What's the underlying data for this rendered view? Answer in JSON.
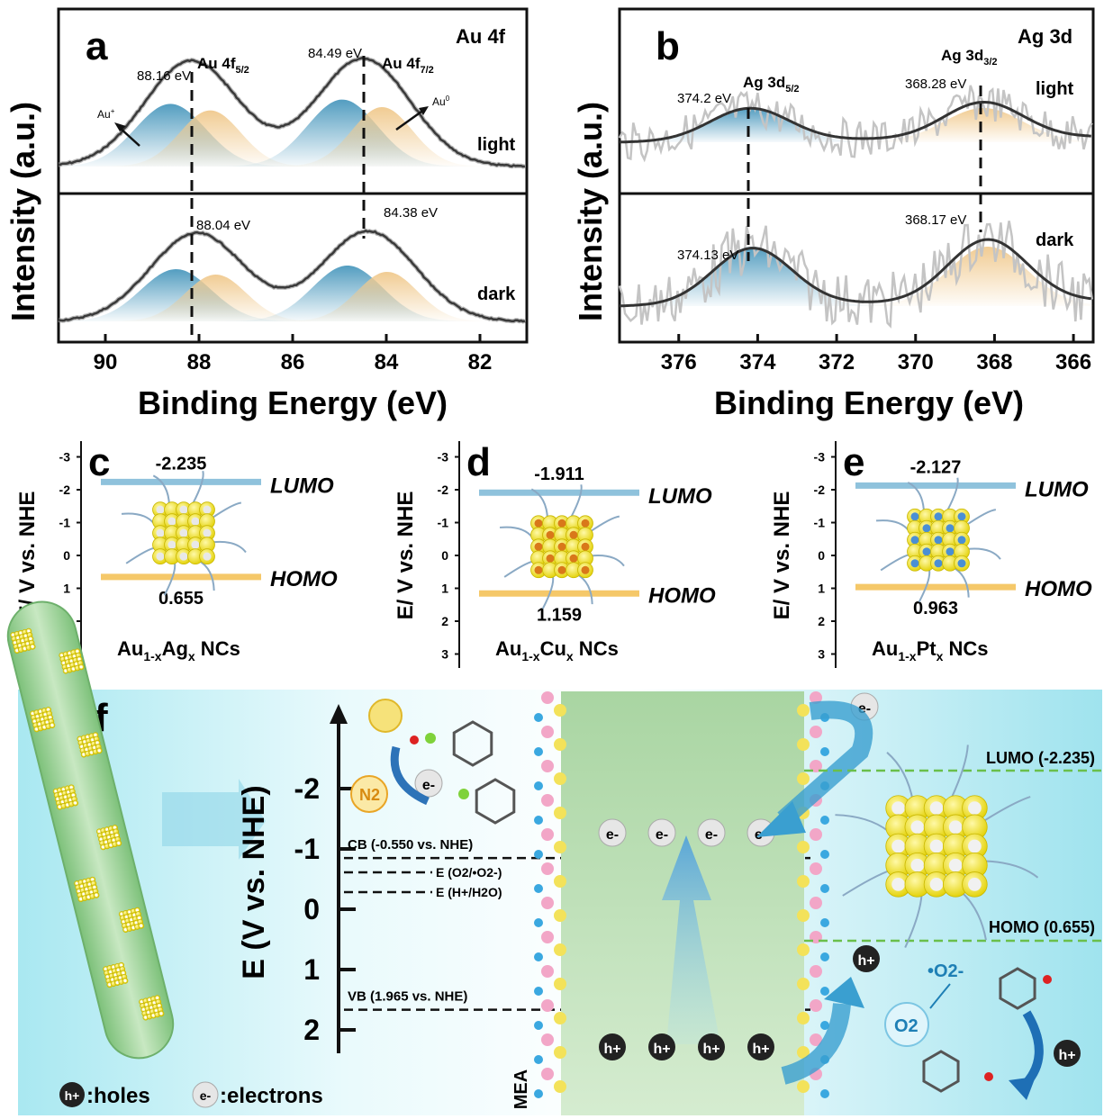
{
  "panels": {
    "a": {
      "letter": "a",
      "tag": "Au 4f",
      "upper_label": "light",
      "lower_label": "dark"
    },
    "b": {
      "letter": "b",
      "tag": "Ag 3d",
      "upper_label": "light",
      "lower_label": "dark"
    },
    "c": {
      "letter": "c",
      "material": "Au1-xAgx NCs"
    },
    "d": {
      "letter": "d",
      "material": "Au1-xCux NCs"
    },
    "e": {
      "letter": "e",
      "material": "Au1-xPtx NCs"
    },
    "f": {
      "letter": "f",
      "axis_label": "E (V vs. NHE)",
      "cb_label": "CB (-0.550 vs. NHE)",
      "vb_label": "VB (1.965 vs. NHE)",
      "o2_label": "E (O2/•O2-)",
      "h_label": "E (H+/H2O)",
      "lumo_label": "LUMO (-2.235)",
      "homo_label": "HOMO (0.655)",
      "mea_label": "MEA",
      "legend_holes": ":holes",
      "legend_electrons": ":electrons",
      "n2_label": "N2",
      "o2_bubble": "O2",
      "o2_radical": "•O2-",
      "electron_symbol": "e-",
      "hole_symbol": "h+",
      "colors": {
        "background": "#bfeff5",
        "rod": "#9fd19a",
        "cluster": "#f2e318",
        "arrow": "#3a9fd0"
      }
    }
  },
  "axis_labels": {
    "binding_energy": "Binding Energy (eV)",
    "intensity": "Intensity (a.u.)",
    "e_v_nhe": "E/ V vs. NHE",
    "lumo": "LUMO",
    "homo": "HOMO"
  },
  "chart_data": [
    {
      "panel": "a",
      "type": "line",
      "title": "",
      "xlabel": "Binding Energy (eV)",
      "ylabel": "Intensity (a.u.)",
      "xlim": [
        91,
        81
      ],
      "xticks": [
        90,
        88,
        86,
        84,
        82
      ],
      "reversed_x": true,
      "subplots": [
        {
          "label": "light",
          "peaks": [
            {
              "name": "Au 4f5/2",
              "position_eV": 88.16,
              "label": "88.16 eV"
            },
            {
              "name": "Au 4f7/2",
              "position_eV": 84.49,
              "label": "84.49 eV"
            }
          ],
          "components": [
            "Au+",
            "Au0"
          ]
        },
        {
          "label": "dark",
          "peaks": [
            {
              "name": "Au 4f5/2",
              "position_eV": 88.04,
              "label": "88.04 eV"
            },
            {
              "name": "Au 4f7/2",
              "position_eV": 84.38,
              "label": "84.38 eV"
            }
          ]
        }
      ],
      "peak_labels": [
        "Au 4f5/2",
        "Au 4f7/2"
      ],
      "component_labels": [
        "Au+",
        "Au0"
      ],
      "grid": false
    },
    {
      "panel": "b",
      "type": "line",
      "title": "",
      "xlabel": "Binding Energy (eV)",
      "ylabel": "Intensity (a.u.)",
      "xlim": [
        377.5,
        365.5
      ],
      "xticks": [
        376,
        374,
        372,
        370,
        368,
        366
      ],
      "reversed_x": true,
      "subplots": [
        {
          "label": "light",
          "peaks": [
            {
              "name": "Ag 3d5/2",
              "position_eV": 374.2,
              "label": "374.2 eV"
            },
            {
              "name": "Ag 3d3/2",
              "position_eV": 368.28,
              "label": "368.28 eV"
            }
          ]
        },
        {
          "label": "dark",
          "peaks": [
            {
              "name": "Ag 3d5/2",
              "position_eV": 374.13,
              "label": "374.13 eV"
            },
            {
              "name": "Ag 3d3/2",
              "position_eV": 368.17,
              "label": "368.17 eV"
            }
          ]
        }
      ],
      "peak_labels": [
        "Ag 3d5/2",
        "Ag 3d3/2"
      ],
      "grid": false
    },
    {
      "panel": "c",
      "type": "bar",
      "ylabel": "E/ V vs. NHE",
      "ylim": [
        3,
        -3
      ],
      "yticks": [
        -3,
        -2,
        -1,
        0,
        1,
        2,
        3
      ],
      "lumo": -2.235,
      "homo": 0.655,
      "lumo_label": "-2.235",
      "homo_label": "0.655"
    },
    {
      "panel": "d",
      "type": "bar",
      "ylabel": "E/ V vs. NHE",
      "ylim": [
        3,
        -3
      ],
      "yticks": [
        -3,
        -2,
        -1,
        0,
        1,
        2,
        3
      ],
      "lumo": -1.911,
      "homo": 1.159,
      "lumo_label": "-1.911",
      "homo_label": "1.159"
    },
    {
      "panel": "e",
      "type": "bar",
      "ylabel": "E/ V vs. NHE",
      "ylim": [
        3,
        -3
      ],
      "yticks": [
        -3,
        -2,
        -1,
        0,
        1,
        2,
        3
      ],
      "lumo": -2.127,
      "homo": 0.963,
      "lumo_label": "-2.127",
      "homo_label": "0.963"
    },
    {
      "panel": "f",
      "type": "line",
      "ylabel": "E (V vs. NHE)",
      "yticks": [
        -2,
        -1,
        0,
        1,
        2
      ],
      "levels": [
        {
          "name": "CB",
          "value": -0.55,
          "label": "CB (-0.550 vs. NHE)"
        },
        {
          "name": "E(O2/•O2-)",
          "value": -0.33
        },
        {
          "name": "E(H+/H2O)",
          "value": -0.05
        },
        {
          "name": "VB",
          "value": 1.965,
          "label": "VB (1.965 vs. NHE)"
        },
        {
          "name": "LUMO",
          "value": -2.235,
          "label": "LUMO (-2.235)"
        },
        {
          "name": "HOMO",
          "value": 0.655,
          "label": "HOMO (0.655)"
        }
      ]
    }
  ]
}
